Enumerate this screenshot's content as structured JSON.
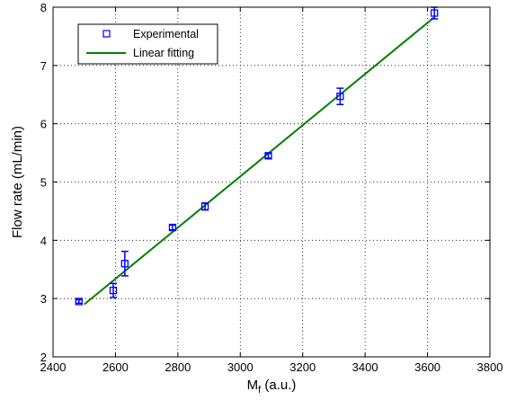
{
  "chart_data": {
    "type": "scatter",
    "xlabel": "M",
    "xlabel_subscript": "f",
    "xlabel_suffix": " (a.u.)",
    "ylabel": "Flow rate (mL/min)",
    "xlim": [
      2400,
      3800
    ],
    "ylim": [
      2,
      8
    ],
    "xticks": [
      2400,
      2600,
      2800,
      3000,
      3200,
      3400,
      3600,
      3800
    ],
    "yticks": [
      2,
      3,
      4,
      5,
      6,
      7,
      8
    ],
    "grid": true,
    "legend_position": "top-left",
    "series": [
      {
        "name": "Experimental",
        "kind": "points-with-errorbars",
        "color": "#0000ff",
        "marker": "square",
        "points": [
          {
            "x": 2483,
            "y": 2.95,
            "err": 0.03
          },
          {
            "x": 2593,
            "y": 3.14,
            "err": 0.12
          },
          {
            "x": 2630,
            "y": 3.6,
            "err": 0.21
          },
          {
            "x": 2783,
            "y": 4.22,
            "err": 0.04
          },
          {
            "x": 2887,
            "y": 4.58,
            "err": 0.06
          },
          {
            "x": 3090,
            "y": 5.45,
            "err": 0.04
          },
          {
            "x": 3320,
            "y": 6.47,
            "err": 0.14
          },
          {
            "x": 3622,
            "y": 7.9,
            "err": 0.1
          }
        ]
      },
      {
        "name": "Linear fitting",
        "kind": "line",
        "color": "#008000",
        "points": [
          {
            "x": 2500,
            "y": 2.9
          },
          {
            "x": 3620,
            "y": 7.82
          }
        ]
      }
    ]
  }
}
